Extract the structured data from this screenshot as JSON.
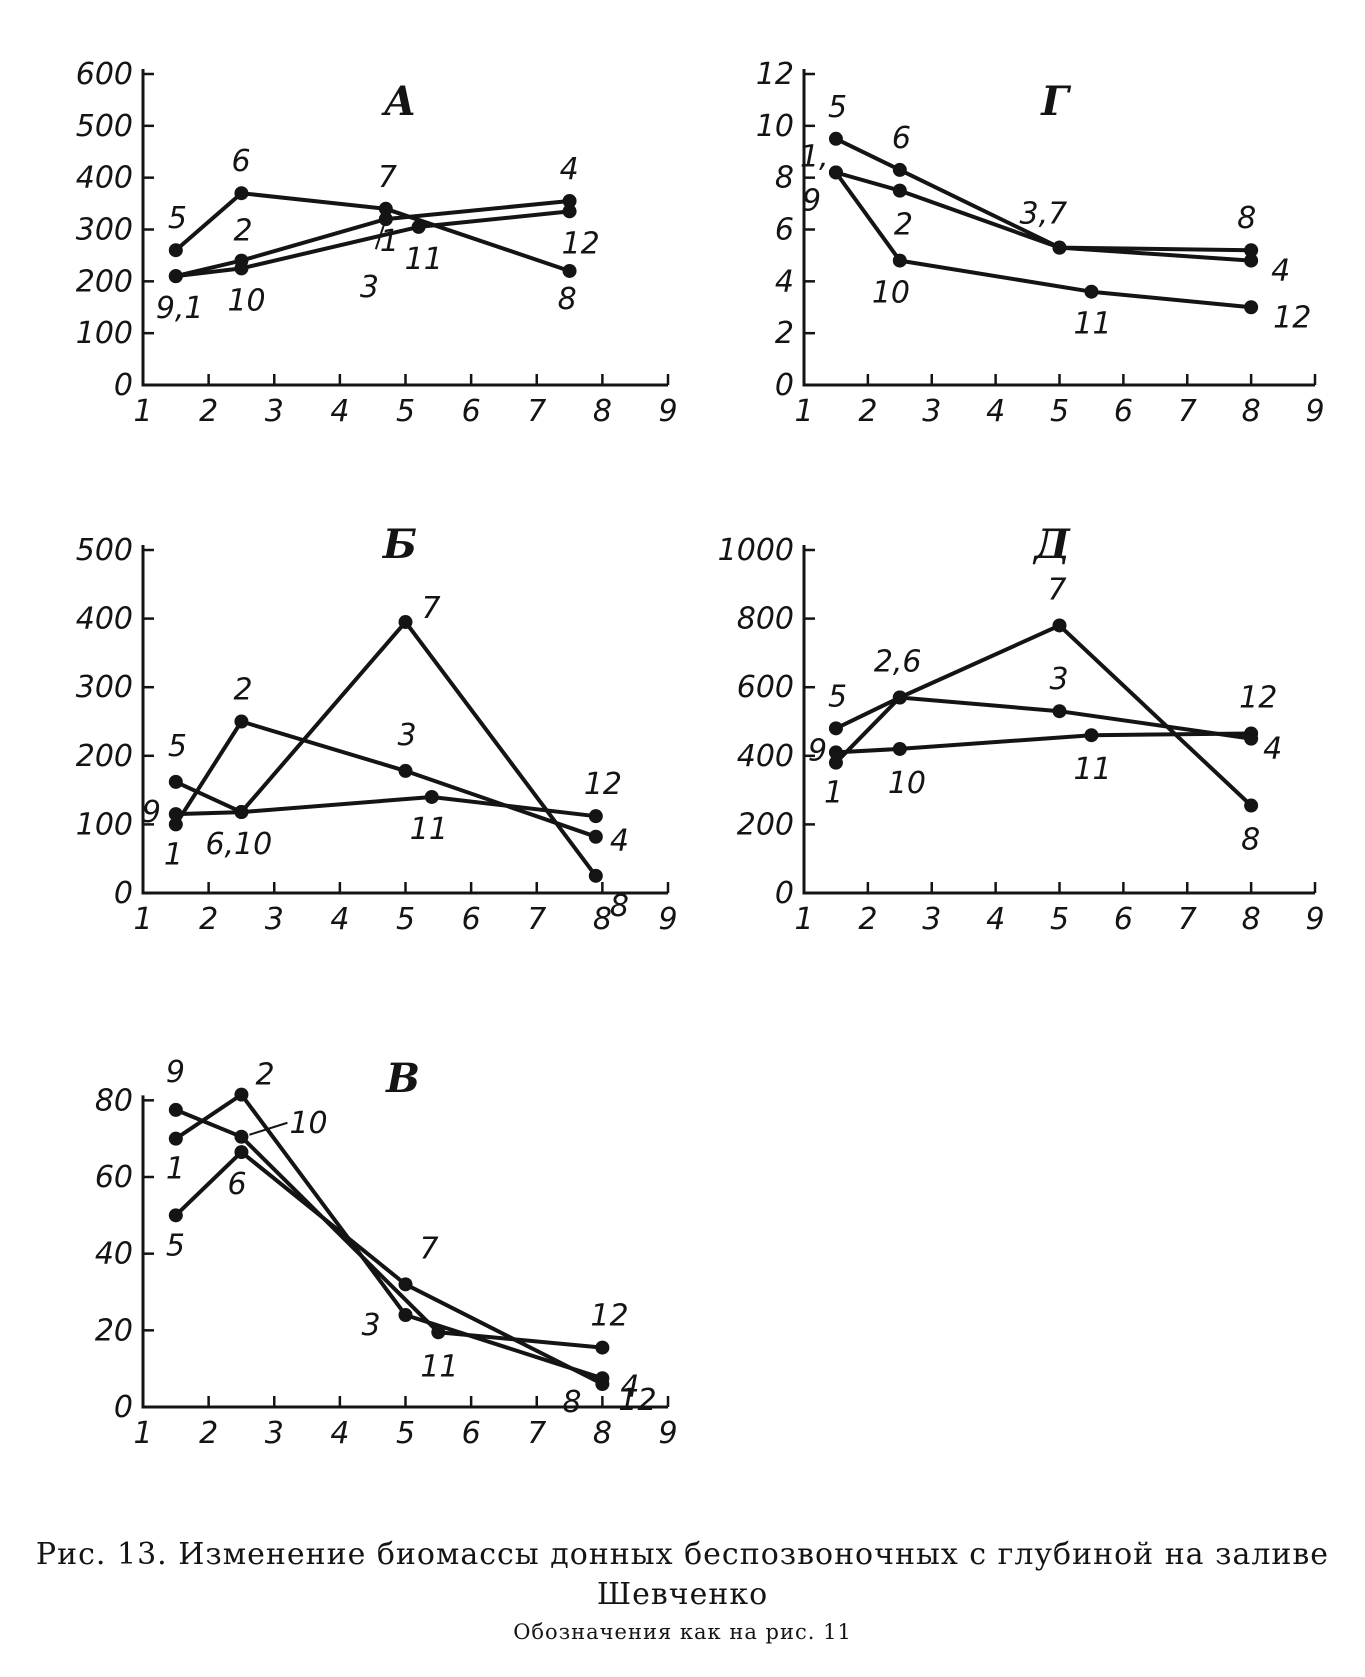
{
  "figure": {
    "caption": "Рис. 13. Изменение биомассы донных беспозвоночных с глубиной на заливе",
    "caption_cont": "Шевченко",
    "note": "Обозначения как на рис. 11"
  },
  "chart_data": [
    {
      "type": "line",
      "panel": "А",
      "xlim": [
        1,
        9
      ],
      "ylim": [
        0,
        600
      ],
      "xticks": [
        1,
        2,
        3,
        4,
        5,
        6,
        7,
        8,
        9
      ],
      "yticks": [
        0,
        100,
        200,
        300,
        400,
        500,
        600
      ],
      "series": [
        {
          "points": [
            {
              "x": 1.5,
              "y": 210,
              "label": ""
            },
            {
              "x": 2.5,
              "y": 240,
              "label": "2"
            },
            {
              "x": 4.7,
              "y": 320,
              "label": ""
            },
            {
              "x": 7.5,
              "y": 355,
              "label": "4"
            }
          ]
        },
        {
          "points": [
            {
              "x": 1.5,
              "y": 260,
              "label": "5"
            },
            {
              "x": 2.5,
              "y": 370,
              "label": "6"
            },
            {
              "x": 4.7,
              "y": 340,
              "label": "7"
            },
            {
              "x": 7.5,
              "y": 220,
              "label": "8"
            }
          ]
        },
        {
          "points": [
            {
              "x": 1.5,
              "y": 210,
              "label": "9,1"
            },
            {
              "x": 2.5,
              "y": 225,
              "label": "10"
            },
            {
              "x": 5.2,
              "y": 305,
              "label": "11"
            },
            {
              "x": 7.5,
              "y": 335,
              "label": "12"
            }
          ]
        }
      ],
      "extra_labels": [
        "1",
        "3"
      ]
    },
    {
      "type": "line",
      "panel": "Г",
      "xlim": [
        1,
        9
      ],
      "ylim": [
        0,
        12
      ],
      "xticks": [
        1,
        2,
        3,
        4,
        5,
        6,
        7,
        8,
        9
      ],
      "yticks": [
        0,
        2,
        4,
        6,
        8,
        10,
        12
      ],
      "series": [
        {
          "points": [
            {
              "x": 1.5,
              "y": 8.2,
              "label": "1,"
            },
            {
              "x": 2.5,
              "y": 7.5,
              "label": "2"
            },
            {
              "x": 5.0,
              "y": 5.3,
              "label": "3,7"
            },
            {
              "x": 8.0,
              "y": 4.8,
              "label": "4"
            }
          ]
        },
        {
          "points": [
            {
              "x": 1.5,
              "y": 9.5,
              "label": "5"
            },
            {
              "x": 2.5,
              "y": 8.3,
              "label": "6"
            },
            {
              "x": 5.0,
              "y": 5.3,
              "label": ""
            },
            {
              "x": 8.0,
              "y": 5.2,
              "label": "8"
            }
          ]
        },
        {
          "points": [
            {
              "x": 1.5,
              "y": 8.2,
              "label": "9"
            },
            {
              "x": 2.5,
              "y": 4.8,
              "label": "10"
            },
            {
              "x": 5.5,
              "y": 3.6,
              "label": "11"
            },
            {
              "x": 8.0,
              "y": 3.0,
              "label": "12"
            }
          ]
        }
      ]
    },
    {
      "type": "line",
      "panel": "Б",
      "xlim": [
        1,
        9
      ],
      "ylim": [
        0,
        500
      ],
      "xticks": [
        1,
        2,
        3,
        4,
        5,
        6,
        7,
        8,
        9
      ],
      "yticks": [
        0,
        100,
        200,
        300,
        400,
        500
      ],
      "series": [
        {
          "points": [
            {
              "x": 1.5,
              "y": 100,
              "label": "1"
            },
            {
              "x": 2.5,
              "y": 250,
              "label": "2"
            },
            {
              "x": 5.0,
              "y": 178,
              "label": "3"
            },
            {
              "x": 7.9,
              "y": 82,
              "label": "4"
            }
          ]
        },
        {
          "points": [
            {
              "x": 1.5,
              "y": 162,
              "label": "5"
            },
            {
              "x": 2.5,
              "y": 118,
              "label": "6,10"
            },
            {
              "x": 5.0,
              "y": 395,
              "label": "7"
            },
            {
              "x": 7.9,
              "y": 25,
              "label": "8"
            }
          ]
        },
        {
          "points": [
            {
              "x": 1.5,
              "y": 115,
              "label": "9"
            },
            {
              "x": 2.5,
              "y": 118,
              "label": ""
            },
            {
              "x": 5.4,
              "y": 140,
              "label": "11"
            },
            {
              "x": 7.9,
              "y": 112,
              "label": "12"
            }
          ]
        }
      ]
    },
    {
      "type": "line",
      "panel": "Д",
      "xlim": [
        1,
        9
      ],
      "ylim": [
        0,
        1000
      ],
      "xticks": [
        1,
        2,
        3,
        4,
        5,
        6,
        7,
        8,
        9
      ],
      "yticks": [
        0,
        200,
        400,
        600,
        800,
        1000
      ],
      "series": [
        {
          "points": [
            {
              "x": 1.5,
              "y": 380,
              "label": "1"
            },
            {
              "x": 2.5,
              "y": 570,
              "label": "2,6"
            },
            {
              "x": 5.0,
              "y": 530,
              "label": "3"
            },
            {
              "x": 8.0,
              "y": 450,
              "label": "4"
            }
          ]
        },
        {
          "points": [
            {
              "x": 1.5,
              "y": 480,
              "label": "5"
            },
            {
              "x": 2.5,
              "y": 570,
              "label": ""
            },
            {
              "x": 5.0,
              "y": 780,
              "label": "7"
            },
            {
              "x": 8.0,
              "y": 255,
              "label": "8"
            }
          ]
        },
        {
          "points": [
            {
              "x": 1.5,
              "y": 410,
              "label": "9"
            },
            {
              "x": 2.5,
              "y": 420,
              "label": "10"
            },
            {
              "x": 5.5,
              "y": 460,
              "label": "11"
            },
            {
              "x": 8.0,
              "y": 465,
              "label": "12"
            }
          ]
        }
      ]
    },
    {
      "type": "line",
      "panel": "В",
      "xlim": [
        1,
        9
      ],
      "ylim": [
        0,
        90
      ],
      "xticks": [
        1,
        2,
        3,
        4,
        5,
        6,
        7,
        8,
        9
      ],
      "yticks": [
        0,
        20,
        40,
        60,
        80
      ],
      "series": [
        {
          "points": [
            {
              "x": 1.5,
              "y": 70,
              "label": "1"
            },
            {
              "x": 2.5,
              "y": 81.5,
              "label": "2"
            },
            {
              "x": 5.0,
              "y": 24,
              "label": "3"
            },
            {
              "x": 8.0,
              "y": 7.5,
              "label": "4"
            }
          ]
        },
        {
          "points": [
            {
              "x": 1.5,
              "y": 50,
              "label": "5"
            },
            {
              "x": 2.5,
              "y": 66.5,
              "label": "6"
            },
            {
              "x": 5.0,
              "y": 32,
              "label": "7"
            },
            {
              "x": 8.0,
              "y": 6,
              "label": "8"
            }
          ]
        },
        {
          "points": [
            {
              "x": 1.5,
              "y": 77.5,
              "label": "9"
            },
            {
              "x": 2.5,
              "y": 70.5,
              "label": "10"
            },
            {
              "x": 5.5,
              "y": 19.5,
              "label": "11"
            },
            {
              "x": 8.0,
              "y": 15.5,
              "label": "12"
            }
          ]
        }
      ],
      "extra_labels": [
        "12"
      ]
    }
  ]
}
